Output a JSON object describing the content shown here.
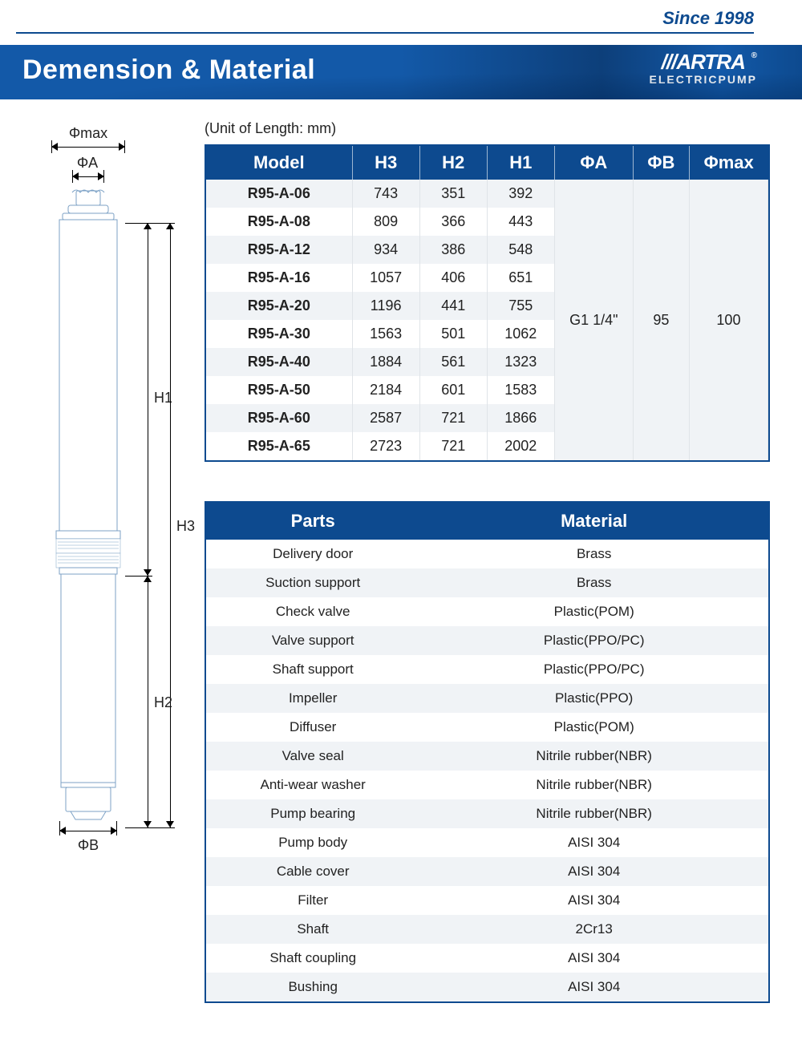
{
  "branding": {
    "since_text": "Since 1998",
    "since_color": "#0d4a8f",
    "since_fontsize": 22,
    "logo_text": "///ARTRA",
    "logo_subtext": "ELECTRICPUMP",
    "registered": "®"
  },
  "header": {
    "title": "Demension & Material",
    "bg_primary": "#1359a8",
    "bg_dark": "#0d3f7a",
    "title_color": "#ffffff",
    "title_fontsize": 34
  },
  "unit_note": "(Unit of Length: mm)",
  "diagram": {
    "labels": {
      "phi_max": "Φmax",
      "phi_a": "ΦA",
      "phi_b": "ΦB",
      "h1": "H1",
      "h2": "H2",
      "h3": "H3"
    },
    "pump": {
      "body_stroke": "#7da2c6",
      "body_fill": "#ffffff",
      "outline_width": 1
    }
  },
  "dim_table": {
    "header_bg": "#0d4a8f",
    "header_color": "#ffffff",
    "row_alt_bg": "#f0f3f6",
    "row_bg": "#ffffff",
    "border_color": "#0d4a8f",
    "columns": [
      "Model",
      "H3",
      "H2",
      "H1",
      "ΦA",
      "ΦB",
      "Φmax"
    ],
    "col_widths_pct": [
      26,
      12,
      12,
      12,
      14,
      10,
      14
    ],
    "merged": {
      "phi_a": "G1 1/4\"",
      "phi_b": "95",
      "phi_max": "100"
    },
    "rows": [
      {
        "model": "R95-A-06",
        "h3": "743",
        "h2": "351",
        "h1": "392"
      },
      {
        "model": "R95-A-08",
        "h3": "809",
        "h2": "366",
        "h1": "443"
      },
      {
        "model": "R95-A-12",
        "h3": "934",
        "h2": "386",
        "h1": "548"
      },
      {
        "model": "R95-A-16",
        "h3": "1057",
        "h2": "406",
        "h1": "651"
      },
      {
        "model": "R95-A-20",
        "h3": "1196",
        "h2": "441",
        "h1": "755"
      },
      {
        "model": "R95-A-30",
        "h3": "1563",
        "h2": "501",
        "h1": "1062"
      },
      {
        "model": "R95-A-40",
        "h3": "1884",
        "h2": "561",
        "h1": "1323"
      },
      {
        "model": "R95-A-50",
        "h3": "2184",
        "h2": "601",
        "h1": "1583"
      },
      {
        "model": "R95-A-60",
        "h3": "2587",
        "h2": "721",
        "h1": "1866"
      },
      {
        "model": "R95-A-65",
        "h3": "2723",
        "h2": "721",
        "h1": "2002"
      }
    ]
  },
  "mat_table": {
    "header_bg": "#0d4a8f",
    "header_color": "#ffffff",
    "row_alt_bg": "#f0f3f6",
    "row_bg": "#ffffff",
    "columns": [
      "Parts",
      "Material"
    ],
    "col_widths_pct": [
      38,
      62
    ],
    "rows": [
      {
        "part": "Delivery door",
        "material": "Brass"
      },
      {
        "part": "Suction support",
        "material": "Brass"
      },
      {
        "part": "Check valve",
        "material": "Plastic(POM)"
      },
      {
        "part": "Valve support",
        "material": "Plastic(PPO/PC)"
      },
      {
        "part": "Shaft support",
        "material": "Plastic(PPO/PC)"
      },
      {
        "part": "Impeller",
        "material": "Plastic(PPO)"
      },
      {
        "part": "Diffuser",
        "material": "Plastic(POM)"
      },
      {
        "part": "Valve seal",
        "material": "Nitrile rubber(NBR)"
      },
      {
        "part": "Anti-wear washer",
        "material": "Nitrile rubber(NBR)"
      },
      {
        "part": "Pump bearing",
        "material": "Nitrile rubber(NBR)"
      },
      {
        "part": "Pump body",
        "material": "AISI 304"
      },
      {
        "part": "Cable cover",
        "material": "AISI 304"
      },
      {
        "part": "Filter",
        "material": "AISI 304"
      },
      {
        "part": "Shaft",
        "material": "2Cr13"
      },
      {
        "part": "Shaft coupling",
        "material": "AISI 304"
      },
      {
        "part": "Bushing",
        "material": "AISI 304"
      }
    ]
  }
}
